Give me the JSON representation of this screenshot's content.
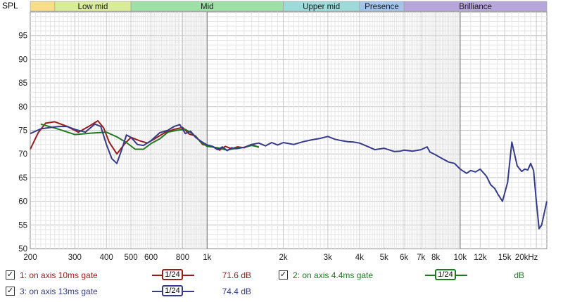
{
  "chart_data": {
    "type": "line",
    "title": "",
    "ylabel": "SPL",
    "xlabel": "",
    "x_scale": "log",
    "xlim": [
      200,
      22000
    ],
    "ylim": [
      50,
      100
    ],
    "grid": true,
    "ytick_labels": [
      "50",
      "55",
      "60",
      "65",
      "70",
      "75",
      "80",
      "85",
      "90",
      "95"
    ],
    "yticks": [
      50,
      55,
      60,
      65,
      70,
      75,
      80,
      85,
      90,
      95
    ],
    "xticks": [
      200,
      300,
      400,
      500,
      600,
      800,
      1000,
      2000,
      3000,
      4000,
      5000,
      6000,
      7000,
      8000,
      10000,
      12000,
      15000,
      20000
    ],
    "xtick_labels": [
      "200",
      "300",
      "400",
      "500",
      "600",
      "800",
      "1k",
      "2k",
      "3k",
      "4k",
      "5k",
      "6k",
      "7k",
      "8k",
      "10k",
      "12k",
      "15k",
      "20kHz"
    ],
    "bands": [
      {
        "label": "",
        "from": 200,
        "to": 250,
        "color": "#f7dc8a"
      },
      {
        "label": "Low mid",
        "from": 250,
        "to": 500,
        "color": "#d9ec9a"
      },
      {
        "label": "Mid",
        "from": 500,
        "to": 2000,
        "color": "#9ee0a6"
      },
      {
        "label": "Upper mid",
        "from": 2000,
        "to": 4000,
        "color": "#9fdada"
      },
      {
        "label": "Presence",
        "from": 4000,
        "to": 6000,
        "color": "#a4c4ea"
      },
      {
        "label": "Brilliance",
        "from": 6000,
        "to": 22000,
        "color": "#b7a6da"
      }
    ],
    "series": [
      {
        "name": "1: on axis 10ms gate",
        "color": "#9b1b1b",
        "x": [
          200,
          215,
          230,
          250,
          280,
          310,
          340,
          370,
          390,
          410,
          440,
          470,
          500,
          540,
          580,
          620,
          680,
          740,
          800,
          850,
          900,
          960,
          1000,
          1060,
          1120,
          1180,
          1250,
          1320,
          1400,
          1500,
          1600
        ],
        "y": [
          71,
          74.5,
          76.5,
          76.8,
          75.8,
          74.6,
          75.8,
          77.0,
          75.5,
          72.5,
          70.0,
          72.0,
          73.5,
          72.8,
          72.3,
          73.2,
          74.5,
          75.2,
          75.6,
          74.2,
          73.8,
          72.0,
          71.8,
          71.5,
          70.8,
          71.6,
          71.1,
          71.5,
          71.3,
          72.0,
          71.4
        ]
      },
      {
        "name": "2: on axis 4.4ms gate",
        "color": "#1f7a1f",
        "x": [
          220,
          260,
          300,
          350,
          400,
          440,
          480,
          520,
          560,
          600,
          650,
          700,
          760,
          820,
          880,
          950,
          1000,
          1100,
          1200,
          1300,
          1400,
          1500,
          1600
        ],
        "y": [
          76.3,
          75.2,
          74.1,
          74.4,
          74.6,
          73.6,
          72.4,
          71.0,
          71.0,
          72.2,
          73.2,
          74.6,
          75.0,
          75.2,
          74.2,
          72.4,
          71.6,
          71.3,
          70.8,
          71.2,
          71.4,
          71.8,
          71.5
        ]
      },
      {
        "name": "3: on axis 13ms gate",
        "color": "#353b8a",
        "x": [
          200,
          220,
          240,
          260,
          280,
          300,
          330,
          360,
          380,
          400,
          420,
          440,
          460,
          480,
          500,
          530,
          560,
          600,
          650,
          700,
          740,
          780,
          820,
          860,
          900,
          950,
          1000,
          1050,
          1100,
          1150,
          1200,
          1250,
          1300,
          1400,
          1500,
          1600,
          1700,
          1800,
          1900,
          2000,
          2200,
          2400,
          2600,
          2800,
          3000,
          3200,
          3400,
          3600,
          3800,
          4000,
          4300,
          4600,
          5000,
          5500,
          5800,
          6000,
          6500,
          7000,
          7400,
          7600,
          8000,
          8500,
          9000,
          9500,
          10000,
          10600,
          11000,
          11500,
          12000,
          12700,
          13200,
          13700,
          14100,
          14700,
          15400,
          16000,
          16800,
          17500,
          18000,
          18500,
          19000,
          19500,
          20000,
          20500,
          21000,
          22000
        ],
        "y": [
          74.3,
          75.3,
          75.6,
          75.8,
          75.8,
          75.2,
          74.6,
          76.3,
          75.8,
          72.0,
          69.0,
          68.0,
          71.0,
          74.0,
          73.5,
          72.0,
          71.8,
          72.8,
          74.5,
          75.0,
          75.8,
          76.2,
          74.3,
          74.8,
          73.5,
          72.6,
          71.9,
          71.6,
          70.9,
          71.5,
          70.7,
          71.3,
          71.1,
          71.4,
          72.0,
          72.3,
          71.7,
          72.4,
          71.9,
          72.4,
          72.0,
          72.6,
          73.0,
          73.3,
          73.7,
          73.1,
          72.8,
          72.6,
          72.5,
          72.3,
          71.6,
          70.9,
          71.2,
          70.5,
          70.6,
          70.8,
          70.6,
          70.9,
          71.5,
          70.4,
          69.8,
          69.0,
          68.3,
          68.0,
          66.8,
          65.9,
          66.5,
          66.2,
          66.8,
          65.3,
          63.5,
          62.7,
          61.5,
          60.0,
          64.0,
          72.5,
          67.5,
          66.3,
          66.8,
          66.6,
          68.0,
          66.5,
          60.0,
          54.2,
          55.0,
          60.0
        ]
      }
    ],
    "legend": [
      {
        "label": "1: on axis 10ms gate",
        "checked": true,
        "smoothing": "1/24",
        "value": "71.6 dB",
        "color": "#9b1b1b"
      },
      {
        "label": "2: on axis 4.4ms gate",
        "checked": true,
        "smoothing": "1/24",
        "value": "dB",
        "color": "#1f7a1f"
      },
      {
        "label": "3: on axis 13ms gate",
        "checked": true,
        "smoothing": "1/24",
        "value": "74.4 dB",
        "color": "#353b8a"
      }
    ]
  }
}
